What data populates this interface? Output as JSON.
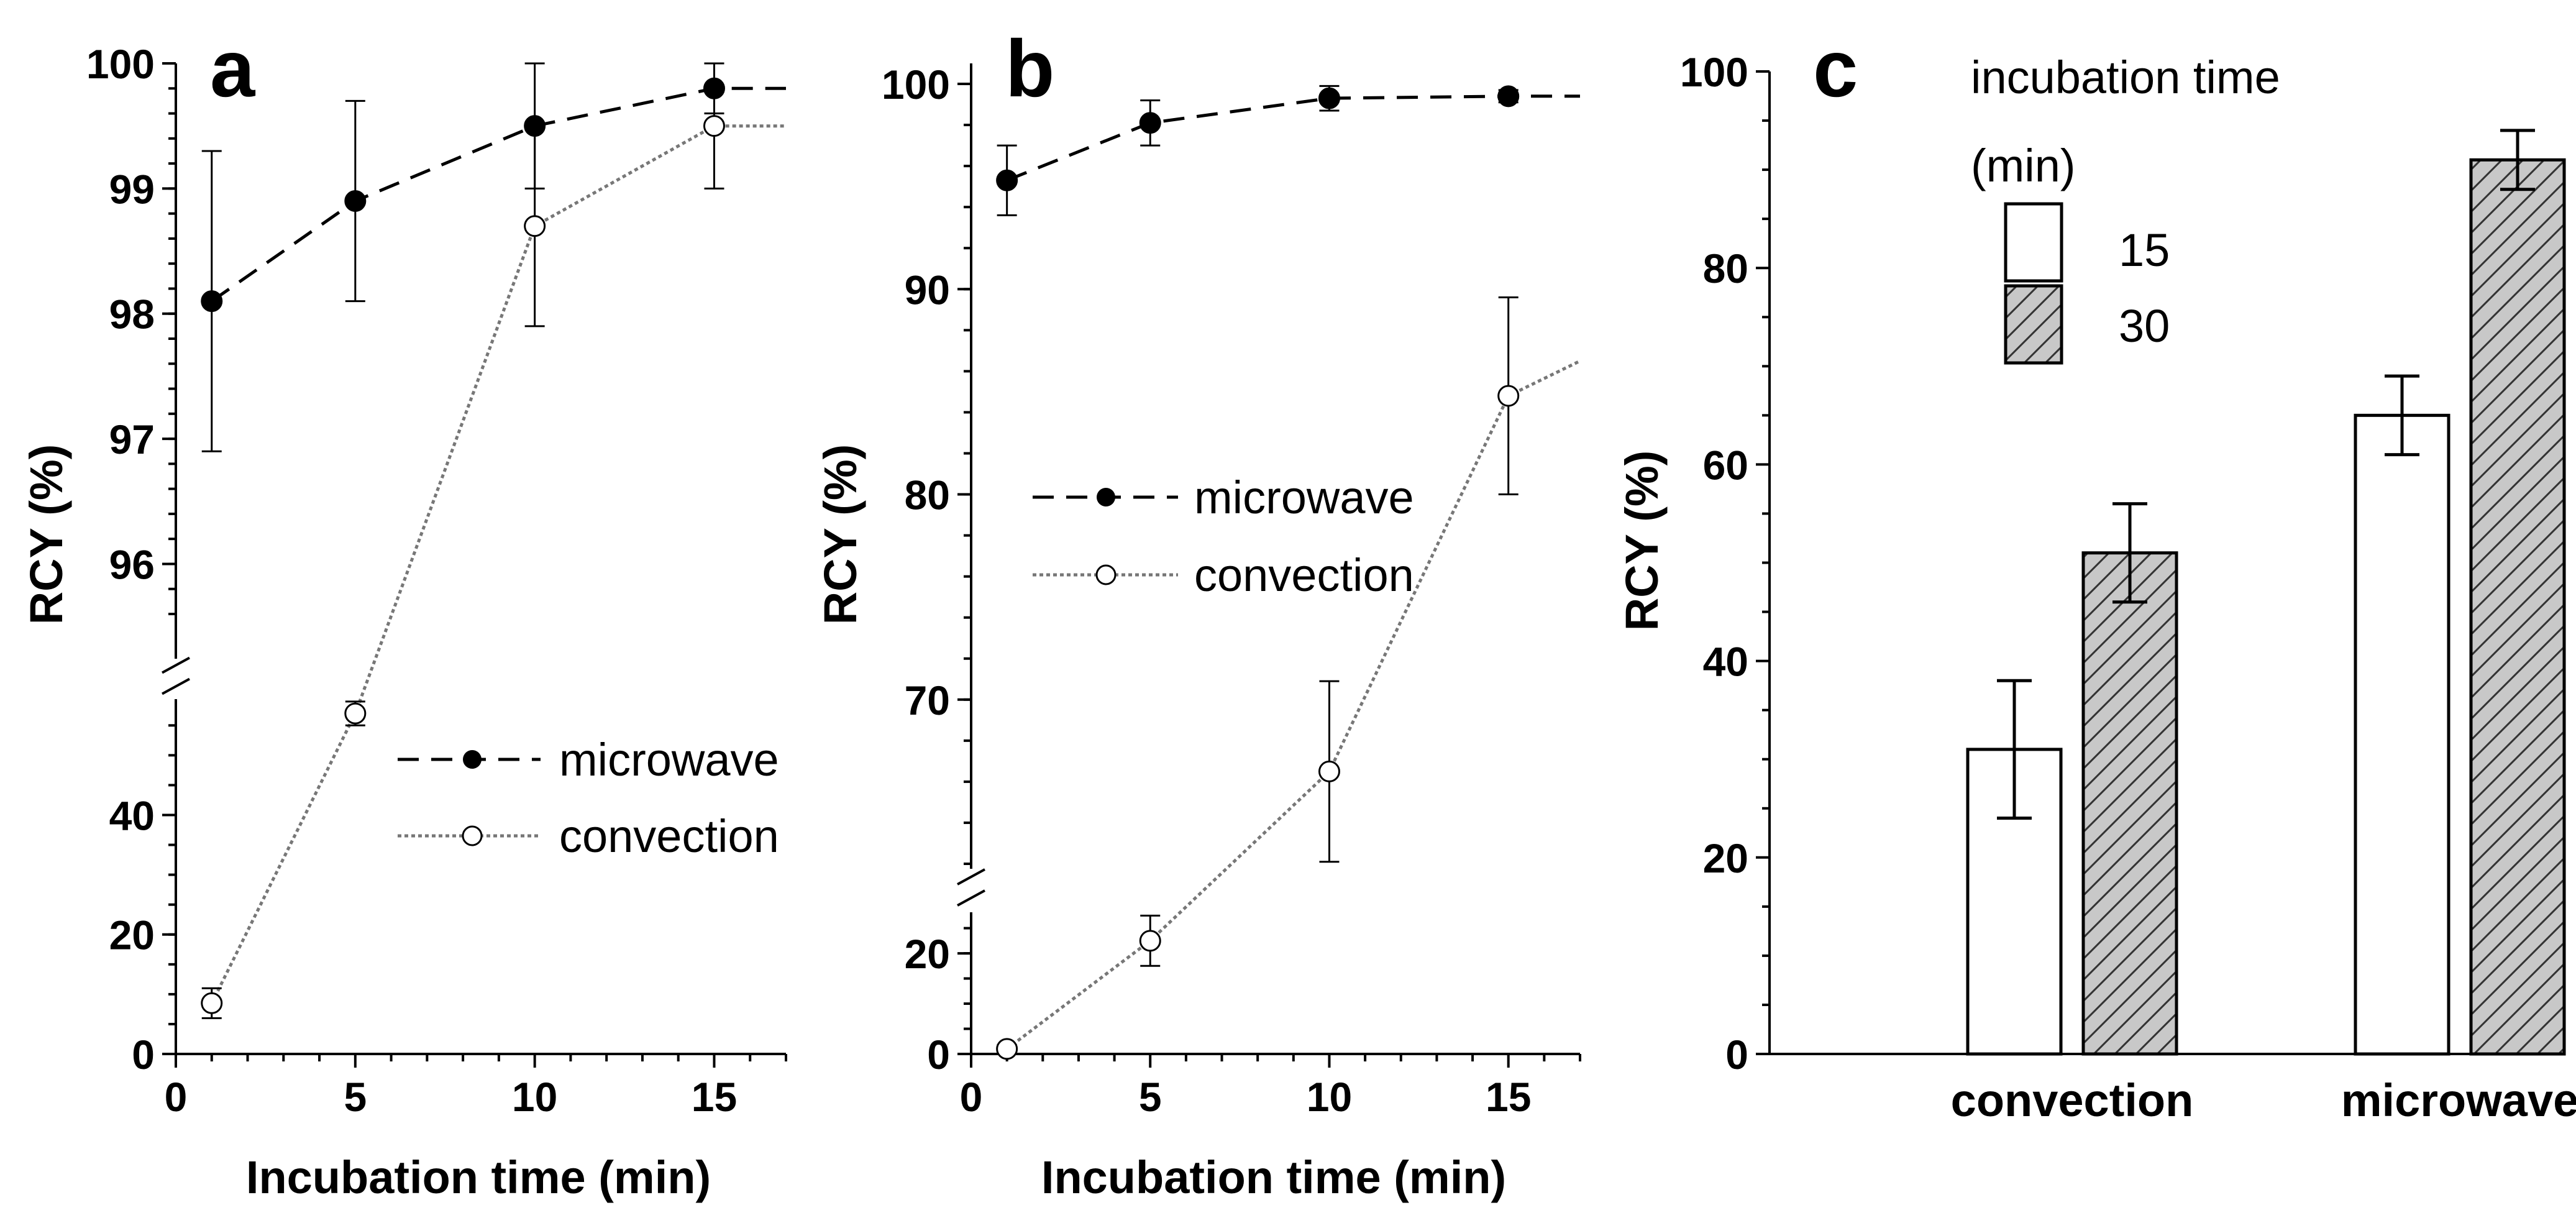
{
  "chart_data": [
    {
      "type": "line",
      "panel": "a",
      "xlabel": "Incubation time (min)",
      "ylabel": "RCY (%)",
      "xlim": [
        0,
        17
      ],
      "xticks": [
        "0",
        "5",
        "10",
        "15"
      ],
      "y_segments": {
        "upper": {
          "ylim": [
            95.6,
            100
          ],
          "ticks": [
            "96",
            "97",
            "98",
            "99",
            "100"
          ]
        },
        "lower": {
          "ylim": [
            0,
            62
          ],
          "ticks": [
            "0",
            "20",
            "40"
          ]
        }
      },
      "legend": {
        "position": "center-right",
        "entries": [
          "microwave",
          "convection"
        ]
      },
      "series": [
        {
          "name": "microwave",
          "marker": "filled-circle",
          "line": "dashed",
          "x": [
            1,
            5,
            10,
            15
          ],
          "y": [
            98.1,
            98.9,
            99.5,
            99.8
          ],
          "err": [
            1.2,
            0.8,
            0.5,
            0.2
          ],
          "extend_to": [
            17,
            99.8
          ]
        },
        {
          "name": "convection",
          "marker": "open-circle",
          "line": "dotted",
          "x": [
            1,
            5,
            10,
            15
          ],
          "y": [
            8.5,
            57,
            98.7,
            99.5
          ],
          "err": [
            2.5,
            2,
            0.8,
            0.5
          ],
          "extend_to": [
            17,
            99.5
          ]
        }
      ]
    },
    {
      "type": "line",
      "panel": "b",
      "xlabel": "Incubation time (min)",
      "ylabel": "RCY (%)",
      "xlim": [
        0,
        17
      ],
      "xticks": [
        "0",
        "5",
        "10",
        "15"
      ],
      "y_segments": {
        "upper": {
          "ylim": [
            62,
            101
          ],
          "ticks": [
            "70",
            "80",
            "90",
            "100"
          ]
        },
        "lower": {
          "ylim": [
            0,
            31
          ],
          "ticks": [
            "0",
            "20"
          ]
        }
      },
      "legend": {
        "position": "center-left",
        "entries": [
          "microwave",
          "convection"
        ]
      },
      "series": [
        {
          "name": "microwave",
          "marker": "filled-circle",
          "line": "dashed",
          "x": [
            1,
            5,
            10,
            15
          ],
          "y": [
            95.3,
            98.1,
            99.3,
            99.4
          ],
          "err": [
            1.7,
            1.1,
            0.6,
            0.3
          ],
          "extend_to": [
            17,
            99.4
          ]
        },
        {
          "name": "convection",
          "marker": "open-circle",
          "line": "dotted",
          "x": [
            1,
            5,
            10,
            15
          ],
          "y": [
            1,
            22.5,
            66.5,
            84.8
          ],
          "err": [
            0.8,
            5,
            4.4,
            4.8
          ],
          "extend_to": [
            17,
            86.5
          ]
        }
      ]
    },
    {
      "type": "bar",
      "panel": "c",
      "ylabel": "RCY (%)",
      "ylim": [
        0,
        100
      ],
      "yticks": [
        "0",
        "20",
        "40",
        "60",
        "80",
        "100"
      ],
      "categories": [
        "convection",
        "microwave"
      ],
      "legend": {
        "title_line1": "incubation time",
        "title_line2": "(min)",
        "position": "top"
      },
      "series": [
        {
          "name": "15",
          "pattern": "white",
          "values": [
            31,
            65
          ],
          "err": [
            7,
            4
          ]
        },
        {
          "name": "30",
          "pattern": "gray-hatched",
          "values": [
            51,
            91
          ],
          "err": [
            5,
            3
          ]
        }
      ]
    }
  ]
}
